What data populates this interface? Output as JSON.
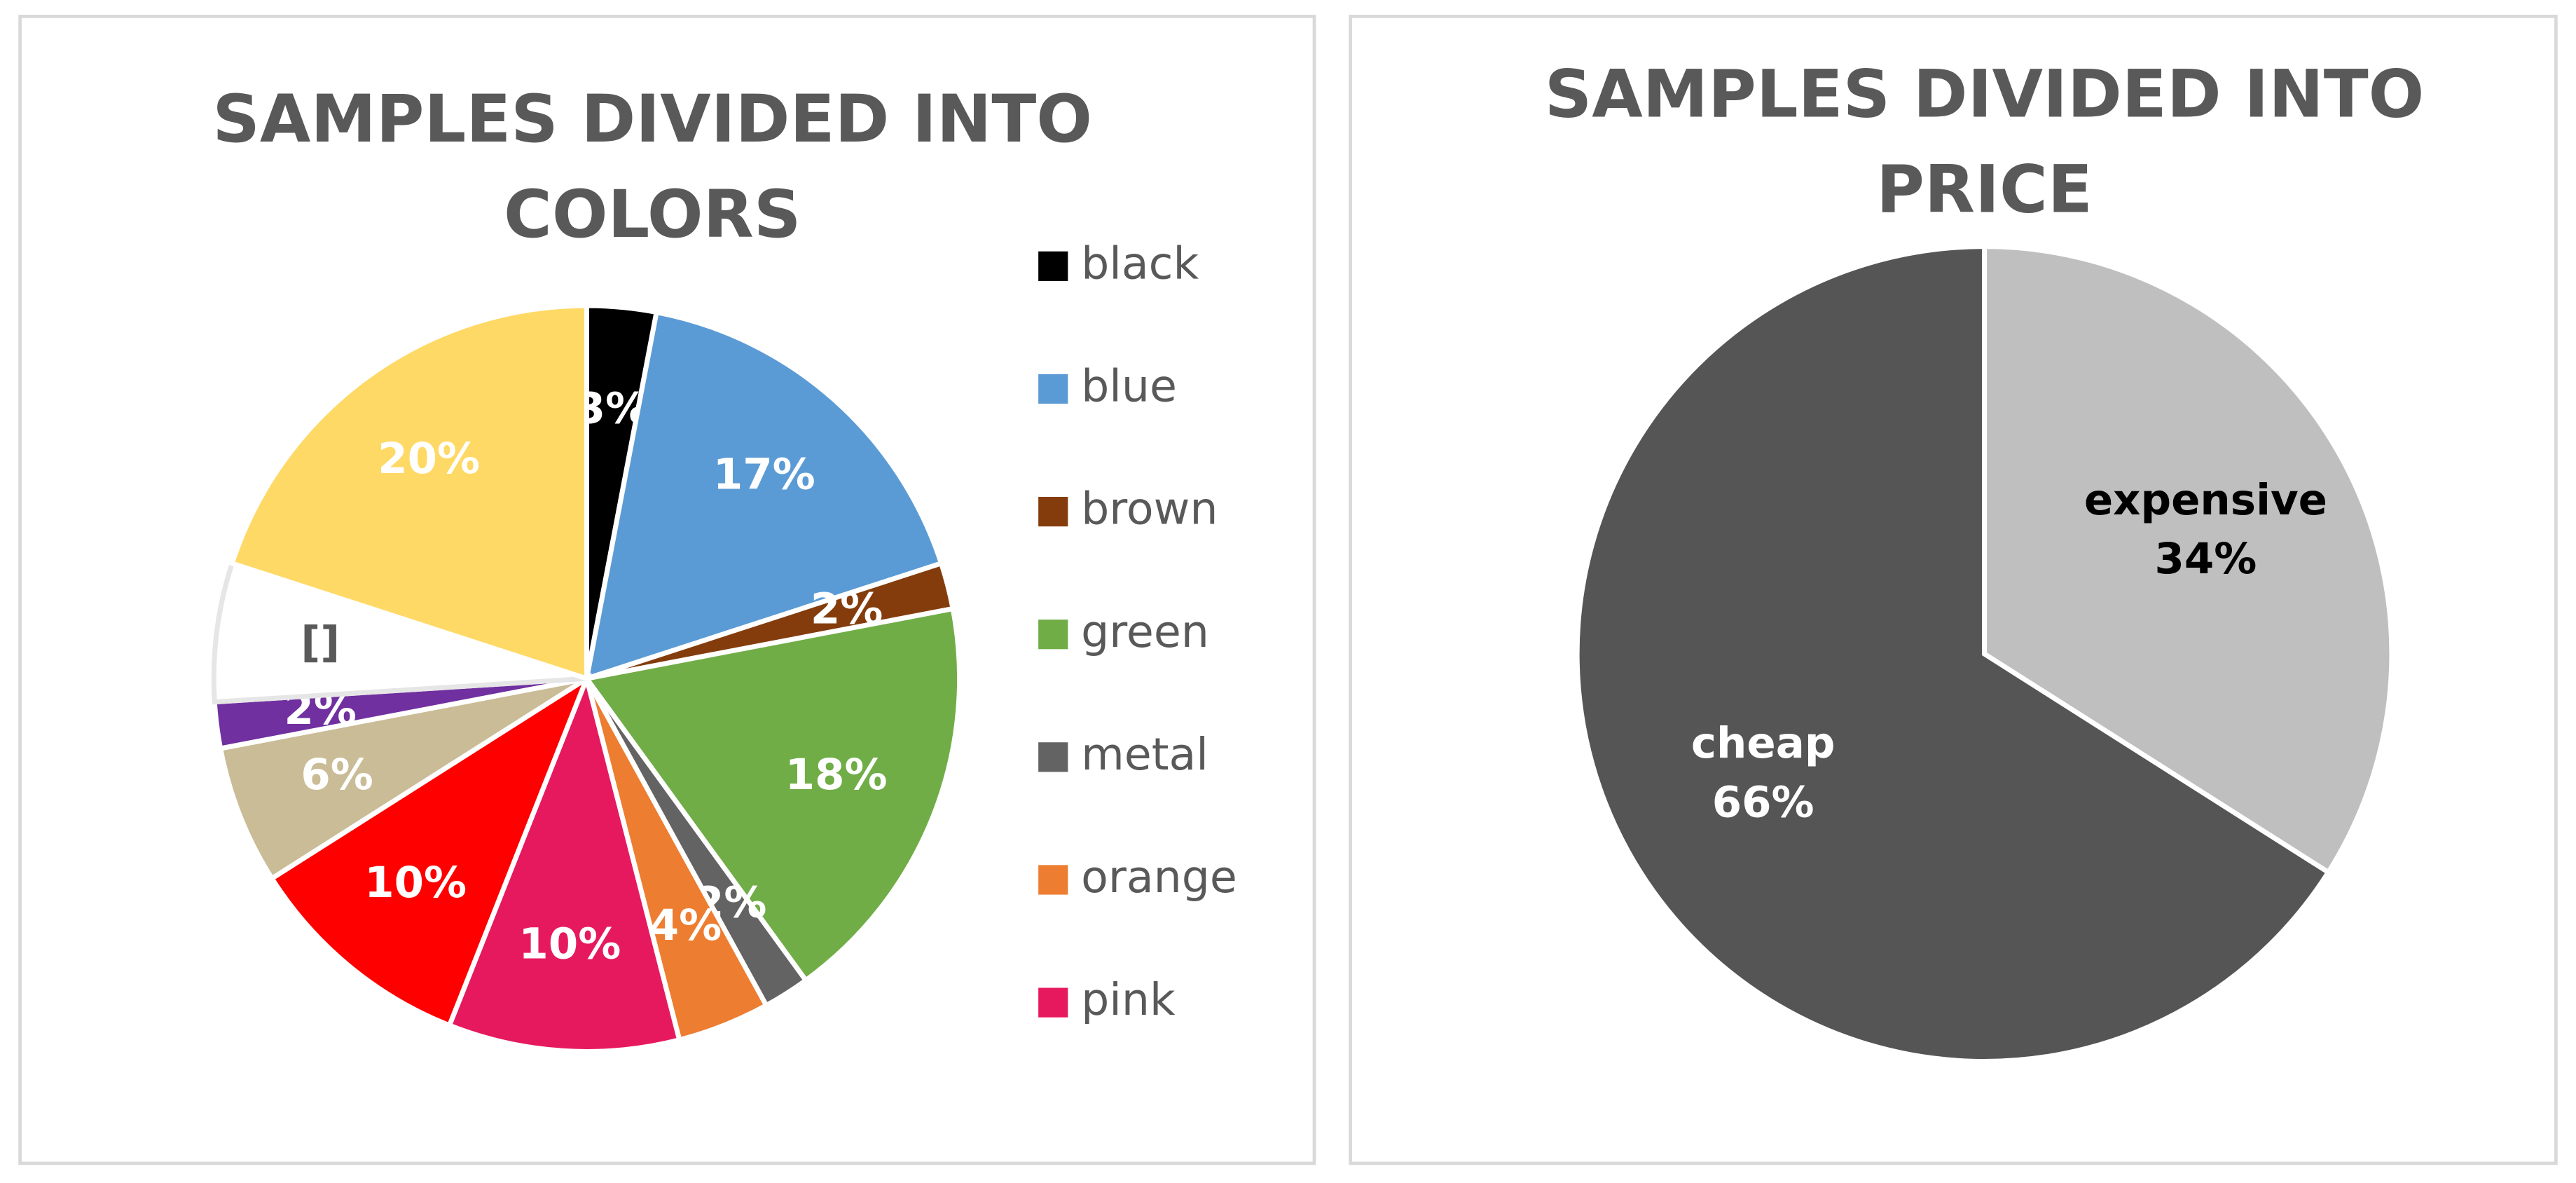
{
  "chart_data": [
    {
      "type": "pie",
      "title": "SAMPLES DIVIDED INTO COLORS",
      "categories": [
        "black",
        "blue",
        "brown",
        "green",
        "metal",
        "orange",
        "pink",
        null,
        null,
        null,
        null,
        null
      ],
      "values": [
        3,
        17,
        2,
        18,
        2,
        4,
        10,
        10,
        6,
        2,
        6,
        20
      ],
      "value_labels": [
        "3%",
        "17%",
        "2%",
        "18%",
        "2%",
        "4%",
        "10%",
        "10%",
        "6%",
        "2%",
        "[]",
        "20%"
      ],
      "colors": [
        "#000000",
        "#5b9bd5",
        "#843c0c",
        "#70ad47",
        "#636363",
        "#ed7d31",
        "#e6195f",
        "#ff0000",
        "#c9bc96",
        "#7030a0",
        "#ffffff",
        "#ffd966"
      ],
      "legend": "right"
    },
    {
      "type": "pie",
      "title": "SAMPLES DIVIDED INTO PRICE",
      "categories": [
        "expensive",
        "cheap"
      ],
      "values": [
        34,
        66
      ],
      "value_labels": [
        "34%",
        "66%"
      ],
      "colors": [
        "#bfbfbf",
        "#555555"
      ]
    }
  ]
}
